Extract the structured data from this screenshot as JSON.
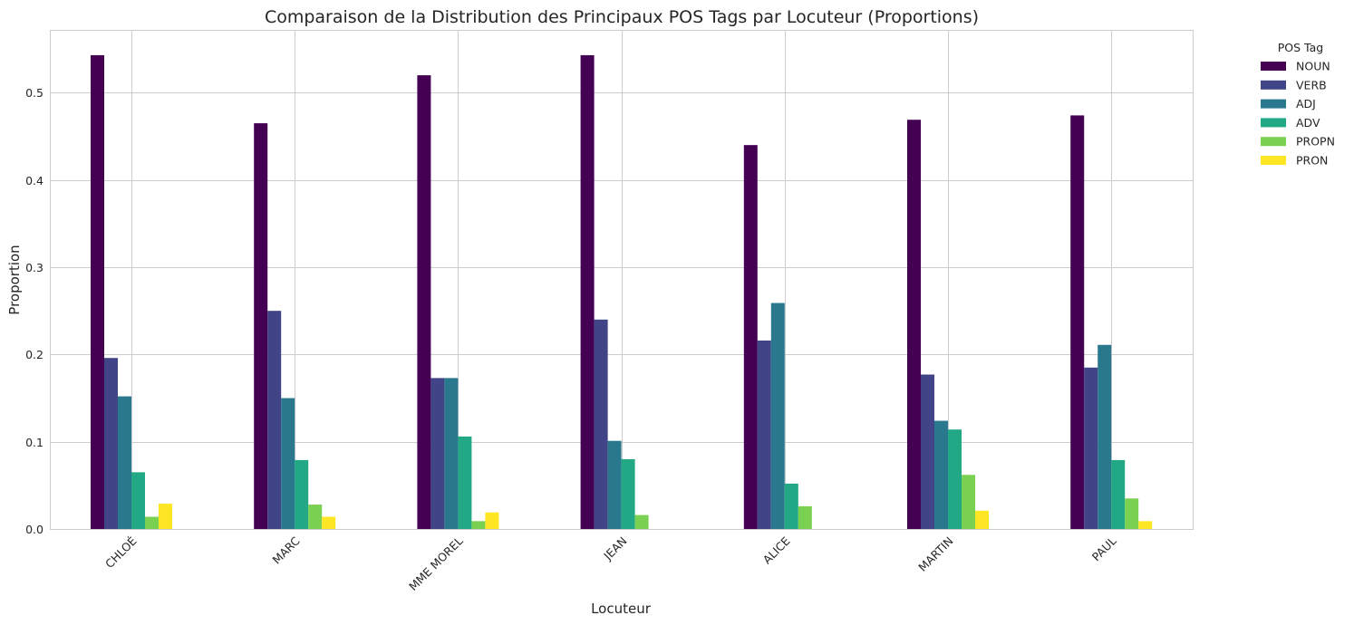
{
  "chart_data": {
    "type": "bar",
    "title": "Comparaison de la Distribution des Principaux POS Tags par Locuteur (Proportions)",
    "xlabel": "Locuteur",
    "ylabel": "Proportion",
    "ylim": [
      0,
      0.572
    ],
    "yticks": [
      "0.0",
      "0.1",
      "0.2",
      "0.3",
      "0.4",
      "0.5"
    ],
    "grid": true,
    "legend_title": "POS Tag",
    "legend_position": "outside-top-right",
    "categories": [
      "CHLOÉ",
      "MARC",
      "MME MOREL",
      "JEAN",
      "ALICE",
      "MARTIN",
      "PAUL"
    ],
    "series": [
      {
        "name": "NOUN",
        "color": "#440154",
        "values": [
          0.543,
          0.465,
          0.52,
          0.543,
          0.44,
          0.469,
          0.474
        ]
      },
      {
        "name": "VERB",
        "color": "#414487",
        "values": [
          0.196,
          0.25,
          0.173,
          0.24,
          0.216,
          0.177,
          0.185
        ]
      },
      {
        "name": "ADJ",
        "color": "#2a788e",
        "values": [
          0.152,
          0.15,
          0.173,
          0.101,
          0.259,
          0.124,
          0.211
        ]
      },
      {
        "name": "ADV",
        "color": "#22a884",
        "values": [
          0.065,
          0.079,
          0.106,
          0.08,
          0.052,
          0.114,
          0.079
        ]
      },
      {
        "name": "PROPN",
        "color": "#7ad151",
        "values": [
          0.014,
          0.028,
          0.009,
          0.016,
          0.026,
          0.062,
          0.035
        ]
      },
      {
        "name": "PRON",
        "color": "#fde725",
        "values": [
          0.029,
          0.014,
          0.019,
          0.0,
          0.0,
          0.021,
          0.009
        ]
      }
    ]
  }
}
